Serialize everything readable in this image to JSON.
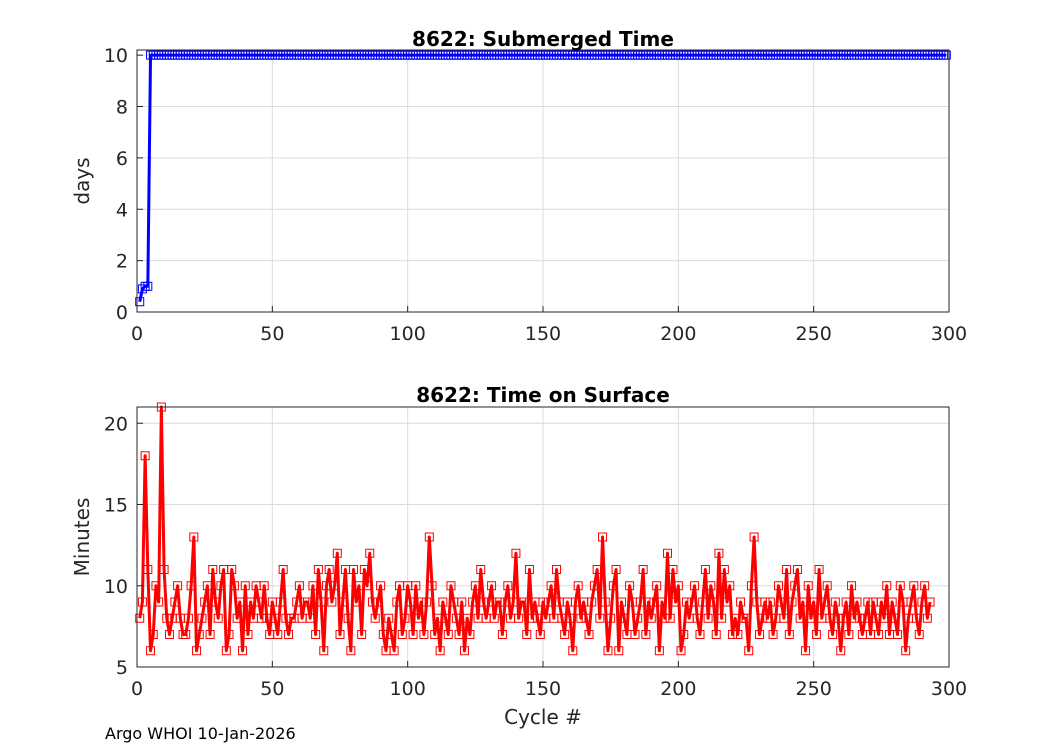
{
  "footer": "Argo WHOI 10-Jan-2026",
  "chart_data": [
    {
      "type": "line",
      "title": "8622: Submerged Time",
      "xlabel": "",
      "ylabel": "days",
      "xlim": [
        0,
        300
      ],
      "ylim": [
        0,
        10.2
      ],
      "xticks": [
        0,
        50,
        100,
        150,
        200,
        250,
        300
      ],
      "yticks": [
        0,
        2,
        4,
        6,
        8,
        10
      ],
      "grid": true,
      "color": "#0000ff",
      "marker": "square",
      "series": [
        {
          "points": [
            [
              1,
              0.4
            ],
            [
              2,
              0.9
            ],
            [
              3,
              1.0
            ],
            [
              4,
              1.0
            ],
            [
              5,
              10.0
            ]
          ],
          "rest_value": 10.0,
          "rest_from": 6,
          "rest_to": 299
        }
      ]
    },
    {
      "type": "line",
      "title": "8622: Time on Surface",
      "xlabel": "Cycle #",
      "ylabel": "Minutes",
      "xlim": [
        0,
        300
      ],
      "ylim": [
        5,
        21
      ],
      "xticks": [
        0,
        50,
        100,
        150,
        200,
        250,
        300
      ],
      "yticks": [
        5,
        10,
        15,
        20
      ],
      "grid": true,
      "color": "#ff0000",
      "marker": "square",
      "series": [
        {
          "values": [
            8,
            9,
            18,
            11,
            6,
            7,
            10,
            9,
            21,
            11,
            8,
            7,
            8,
            9,
            10,
            8,
            7,
            7,
            8,
            10,
            13,
            6,
            7,
            8,
            9,
            10,
            7,
            11,
            9,
            8,
            10,
            11,
            6,
            7,
            11,
            10,
            8,
            9,
            6,
            10,
            7,
            9,
            8,
            10,
            9,
            8,
            10,
            8,
            7,
            9,
            8,
            7,
            9,
            11,
            8,
            7,
            8,
            8,
            9,
            10,
            8,
            9,
            9,
            8,
            10,
            7,
            11,
            9,
            6,
            10,
            11,
            9,
            10,
            12,
            7,
            9,
            11,
            8,
            6,
            11,
            9,
            10,
            7,
            11,
            10,
            12,
            9,
            8,
            9,
            10,
            7,
            6,
            8,
            7,
            6,
            9,
            10,
            7,
            8,
            10,
            9,
            7,
            10,
            8,
            9,
            7,
            9,
            13,
            10,
            7,
            8,
            6,
            9,
            8,
            7,
            10,
            9,
            8,
            7,
            9,
            6,
            8,
            7,
            9,
            10,
            8,
            11,
            9,
            8,
            9,
            10,
            8,
            9,
            9,
            7,
            9,
            10,
            8,
            9,
            12,
            8,
            9,
            9,
            7,
            11,
            8,
            9,
            8,
            7,
            9,
            8,
            9,
            10,
            8,
            11,
            9,
            8,
            7,
            9,
            8,
            6,
            9,
            10,
            8,
            9,
            8,
            7,
            9,
            10,
            11,
            8,
            13,
            9,
            6,
            8,
            10,
            11,
            6,
            9,
            8,
            7,
            10,
            9,
            7,
            8,
            9,
            11,
            7,
            9,
            8,
            9,
            10,
            6,
            9,
            8,
            12,
            8,
            11,
            9,
            10,
            6,
            7,
            9,
            8,
            9,
            10,
            8,
            7,
            9,
            11,
            8,
            10,
            9,
            7,
            12,
            8,
            11,
            9,
            10,
            7,
            8,
            7,
            9,
            8,
            8,
            6,
            10,
            13,
            9,
            7,
            8,
            9,
            8,
            9,
            7,
            8,
            10,
            9,
            8,
            11,
            7,
            9,
            10,
            11,
            8,
            9,
            6,
            10,
            8,
            9,
            7,
            11,
            8,
            9,
            10,
            8,
            7,
            9,
            8,
            6,
            8,
            9,
            7,
            10,
            8,
            9,
            8,
            7,
            8,
            9,
            7,
            9,
            8,
            7,
            9,
            8,
            10,
            7,
            9,
            8,
            7,
            10,
            9,
            6,
            8,
            9,
            10,
            8,
            7,
            9,
            10,
            8,
            9
          ]
        }
      ]
    }
  ]
}
